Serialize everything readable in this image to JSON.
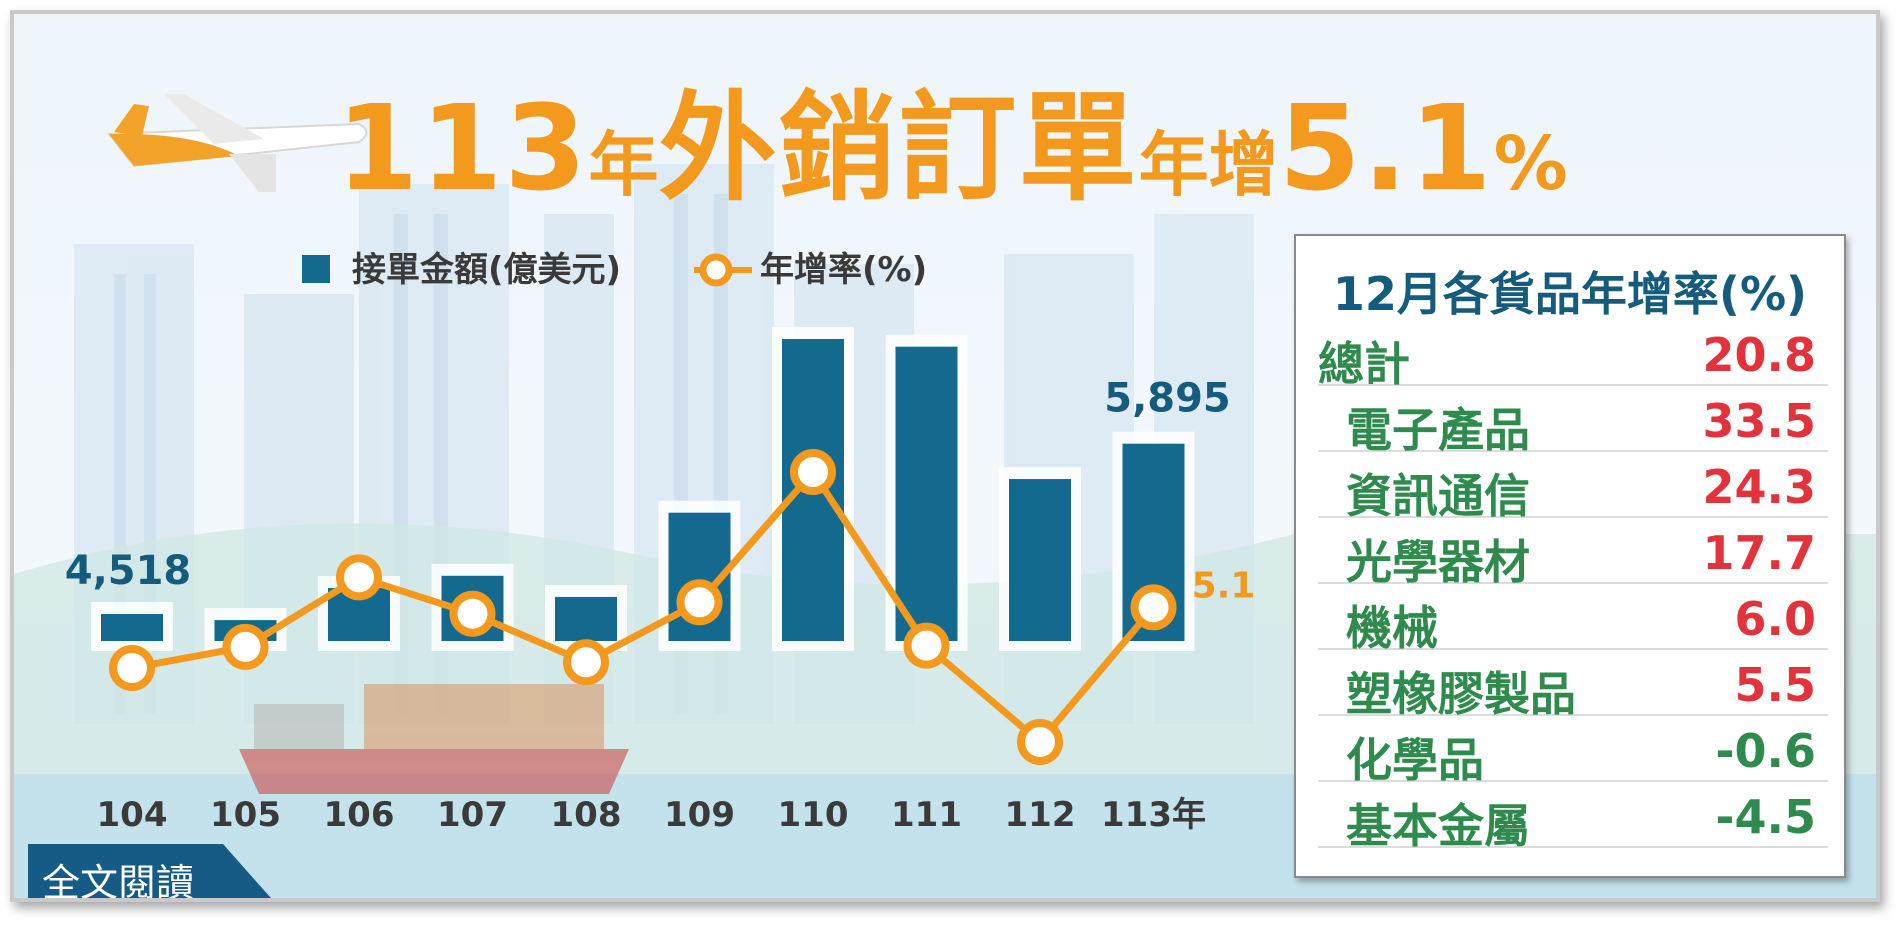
{
  "title": {
    "year": "113",
    "nian": "年",
    "main": "外銷訂單",
    "yoy": "年增",
    "value": "5.1",
    "pct": "%"
  },
  "legend": {
    "bar_label": "接單金額(億美元)",
    "line_label": "年增率(%)"
  },
  "colors": {
    "bar": "#14698e",
    "line": "#f39a1e",
    "title": "#f39a1e",
    "positive": "#e2333c",
    "negative": "#2f8a4d",
    "panel_title": "#155b7c"
  },
  "chart_data": {
    "type": "bar",
    "categories": [
      "104",
      "105",
      "106",
      "107",
      "108",
      "109",
      "110",
      "111",
      "112",
      "113年"
    ],
    "series": [
      {
        "name": "接單金額(億美元)",
        "type": "bar",
        "values": [
          4518,
          4469,
          4728,
          4827,
          4656,
          5337,
          6741,
          6679,
          5609,
          5895
        ]
      },
      {
        "name": "年增率(%)",
        "type": "line",
        "values": [
          -4.4,
          -1.1,
          9.8,
          4.1,
          -3.5,
          5.9,
          26.3,
          -0.9,
          -16.0,
          5.1
        ]
      }
    ],
    "data_labels": {
      "first_bar": "4,518",
      "last_bar": "5,895",
      "last_rate": "5.1"
    },
    "legend_position": "top-left"
  },
  "panel": {
    "title": "12月各貨品年增率(%)",
    "rows": [
      {
        "label": "總計",
        "value": "20.8",
        "sign": "positive"
      },
      {
        "label": "電子產品",
        "value": "33.5",
        "sign": "positive"
      },
      {
        "label": "資訊通信",
        "value": "24.3",
        "sign": "positive"
      },
      {
        "label": "光學器材",
        "value": "17.7",
        "sign": "positive"
      },
      {
        "label": "機械",
        "value": "6.0",
        "sign": "positive"
      },
      {
        "label": "塑橡膠製品",
        "value": "5.5",
        "sign": "positive"
      },
      {
        "label": "化學品",
        "value": "-0.6",
        "sign": "negative"
      },
      {
        "label": "基本金屬",
        "value": "-4.5",
        "sign": "negative"
      }
    ]
  },
  "read_more": "全文閱讀"
}
